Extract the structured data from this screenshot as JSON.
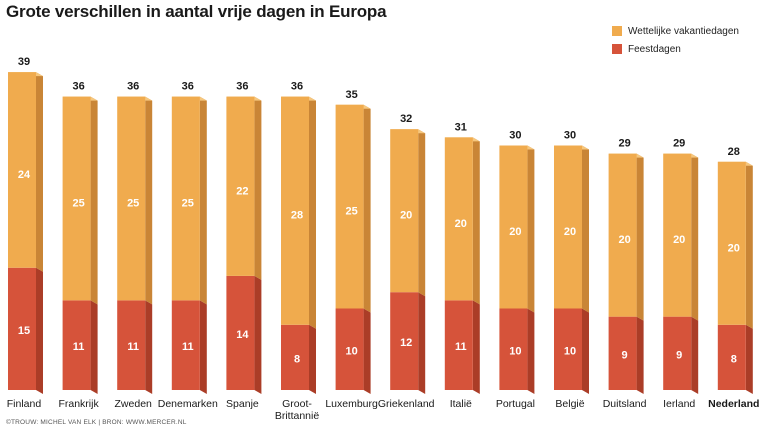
{
  "title": "Grote verschillen in aantal vrije dagen in Europa",
  "credit": "©TROUW: MICHEL VAN ELK | BRON: WWW.MERCER.NL",
  "colors": {
    "vacation": "#f0ab4e",
    "vacation_side": "#c98536",
    "vacation_top": "#f6c77e",
    "holidays": "#d6533a",
    "holidays_side": "#ab3d27",
    "value_text": "#ffffff",
    "total_text": "#1a1a1a"
  },
  "legend": {
    "items": [
      {
        "label": "Wettelijke vakantiedagen",
        "color": "#f0ab4e"
      },
      {
        "label": "Feestdagen",
        "color": "#d6533a"
      }
    ]
  },
  "chart_data": {
    "type": "bar",
    "stacked": true,
    "title": "Grote verschillen in aantal vrije dagen in Europa",
    "categories": [
      "Finland",
      "Frankrijk",
      "Zweden",
      "Denemarken",
      "Spanje",
      "Groot-Brittannië",
      "Luxemburg",
      "Griekenland",
      "Italië",
      "Portugal",
      "België",
      "Duitsland",
      "Ierland",
      "Nederland"
    ],
    "category_labels": [
      "Finland",
      "Frankrijk",
      "Zweden",
      "Denemarken",
      "Spanje",
      "Groot-\nBrittannië",
      "Luxemburg",
      "Griekenland",
      "Italië",
      "Portugal",
      "België",
      "Duitsland",
      "Ierland",
      "Nederland"
    ],
    "highlight": "Nederland",
    "totals": [
      39,
      36,
      36,
      36,
      36,
      36,
      35,
      32,
      31,
      30,
      30,
      29,
      29,
      28
    ],
    "series": [
      {
        "name": "Feestdagen",
        "values": [
          15,
          11,
          11,
          11,
          14,
          8,
          10,
          12,
          11,
          10,
          10,
          9,
          9,
          8
        ]
      },
      {
        "name": "Wettelijke vakantiedagen",
        "values": [
          24,
          25,
          25,
          25,
          22,
          28,
          25,
          20,
          20,
          20,
          20,
          20,
          20,
          20
        ]
      }
    ],
    "ylim": [
      0,
      39
    ],
    "grid": false,
    "legend_position": "top-right"
  }
}
